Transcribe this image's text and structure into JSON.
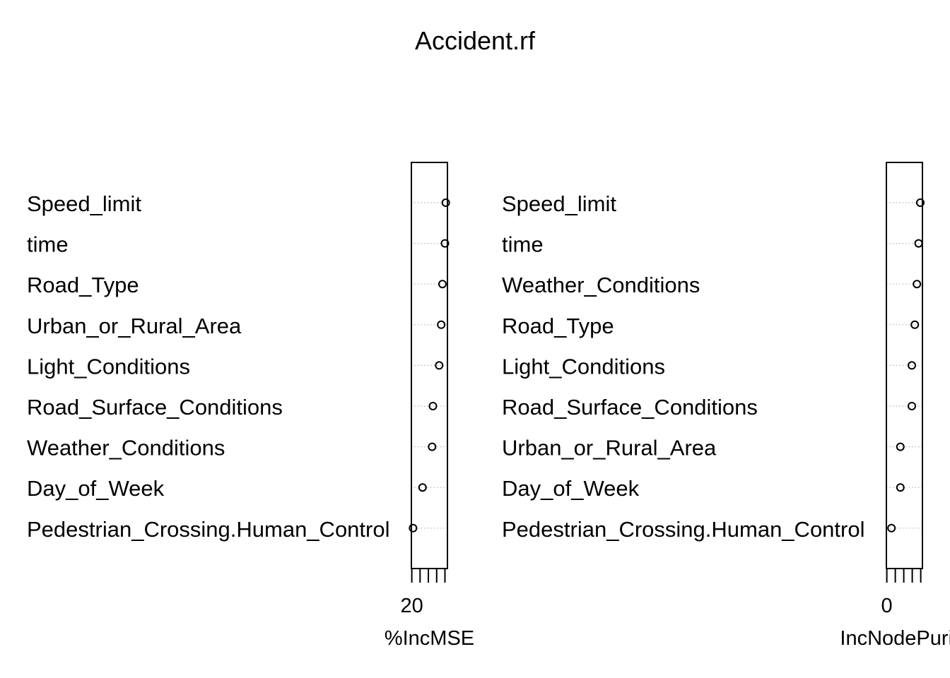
{
  "title": "Accident.rf",
  "chart_data": [
    {
      "type": "scatter",
      "xlabel": "%IncMSE",
      "xlim": [
        19.9,
        28.6
      ],
      "tick_values": [
        20,
        22,
        24,
        26,
        28
      ],
      "tick_labels": [
        "20"
      ],
      "variables": [
        "Speed_limit",
        "time",
        "Road_Type",
        "Urban_or_Rural_Area",
        "Light_Conditions",
        "Road_Surface_Conditions",
        "Weather_Conditions",
        "Day_of_Week",
        "Pedestrian_Crossing.Human_Control"
      ],
      "values": [
        28.2,
        28.0,
        27.4,
        27.1,
        26.6,
        25.1,
        24.9,
        22.6,
        20.3
      ]
    },
    {
      "type": "scatter",
      "xlabel": "IncNodePurity",
      "xlim": [
        -0.1,
        8.4
      ],
      "tick_values": [
        0,
        2,
        4,
        6,
        8
      ],
      "tick_labels": [
        "0"
      ],
      "variables": [
        "Speed_limit",
        "time",
        "Weather_Conditions",
        "Road_Type",
        "Light_Conditions",
        "Road_Surface_Conditions",
        "Urban_or_Rural_Area",
        "Day_of_Week",
        "Pedestrian_Crossing.Human_Control"
      ],
      "values": [
        7.9,
        7.5,
        7.1,
        6.6,
        5.9,
        5.9,
        3.2,
        3.2,
        1.1
      ]
    }
  ]
}
